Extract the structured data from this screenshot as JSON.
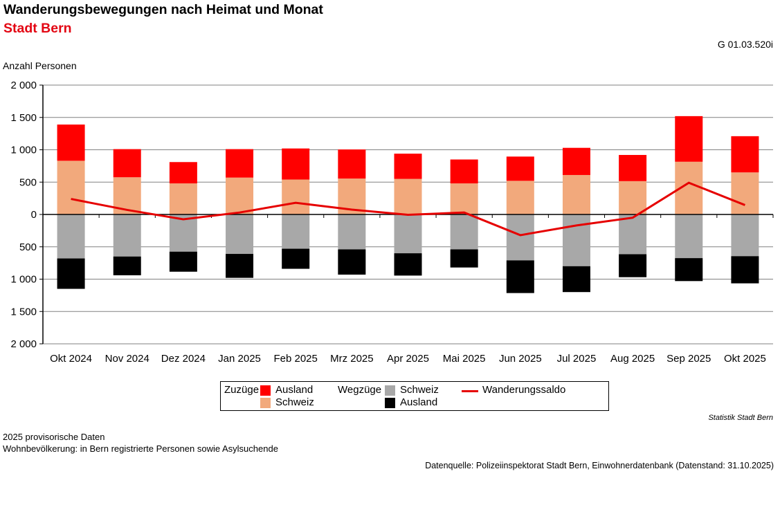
{
  "header": {
    "graph_id": "G 01.03.520i"
  },
  "colors": {
    "subtitle_red": "#e30613",
    "grid": "#808080",
    "axis": "#000000",
    "zuzuege_ausland_red": "#ff0000",
    "zuzuege_schweiz_peach": "#f2a97c",
    "wegzuege_schweiz_gray": "#a8a8a8",
    "wegzuege_ausland_black": "#000000",
    "saldo_line_red": "#e60000"
  },
  "chart_data": {
    "type": "stacked-bar-mirrored+line",
    "title": "Wanderungsbewegungen nach Heimat und Monat",
    "subtitle": "Stadt Bern",
    "ylabel": "Anzahl Personen",
    "xlabel": "",
    "ylim": [
      -2000,
      2000
    ],
    "y_tick_interval": 500,
    "y_tick_values": [
      2000,
      1500,
      1000,
      500,
      0,
      -500,
      -1000,
      -1500,
      -2000
    ],
    "y_tick_labels": [
      "2 000",
      "1 500",
      "1 000",
      "500",
      "0",
      "500",
      "1 000",
      "1 500",
      "2 000"
    ],
    "grid": true,
    "legend_position": "bottom",
    "categories": [
      "Okt 2024",
      "Nov 2024",
      "Dez 2024",
      "Jan 2025",
      "Feb 2025",
      "Mrz 2025",
      "Apr 2025",
      "Mai 2025",
      "Jun 2025",
      "Jul 2025",
      "Aug 2025",
      "Sep 2025",
      "Okt 2025"
    ],
    "series": [
      {
        "name": "Zuzüge Schweiz",
        "direction": "up",
        "color": "#f2a97c",
        "values": [
          830,
          575,
          480,
          570,
          540,
          555,
          550,
          480,
          520,
          610,
          515,
          815,
          650
        ]
      },
      {
        "name": "Zuzüge Ausland",
        "direction": "up",
        "color": "#ff0000",
        "values": [
          560,
          435,
          330,
          440,
          480,
          450,
          390,
          370,
          375,
          420,
          405,
          705,
          560
        ]
      },
      {
        "name": "Wegzüge Schweiz",
        "direction": "down",
        "color": "#a8a8a8",
        "values": [
          680,
          650,
          575,
          610,
          530,
          540,
          600,
          540,
          710,
          800,
          615,
          675,
          645
        ]
      },
      {
        "name": "Wegzüge Ausland",
        "direction": "down",
        "color": "#000000",
        "values": [
          470,
          290,
          310,
          370,
          310,
          390,
          345,
          280,
          505,
          400,
          355,
          355,
          420
        ]
      }
    ],
    "line_series": {
      "name": "Wanderungssaldo",
      "color": "#e60000",
      "values": [
        240,
        70,
        -75,
        30,
        180,
        75,
        -5,
        30,
        -320,
        -170,
        -50,
        490,
        145
      ]
    }
  },
  "legend": {
    "zuzuege_label": "Zuzüge",
    "zuzuege_ausland": "Ausland",
    "zuzuege_schweiz": "Schweiz",
    "wegzuege_label": "Wegzüge",
    "wegzuege_schweiz": "Schweiz",
    "wegzuege_ausland": "Ausland",
    "saldo_label": "Wanderungssaldo"
  },
  "footer": {
    "attribution": "Statistik Stadt Bern",
    "note1": "2025 provisorische Daten",
    "note2": "Wohnbevölkerung: in Bern registrierte Personen sowie Asylsuchende",
    "source": "Datenquelle: Polizeiinspektorat Stadt Bern, Einwohnerdatenbank (Datenstand: 31.10.2025)"
  }
}
